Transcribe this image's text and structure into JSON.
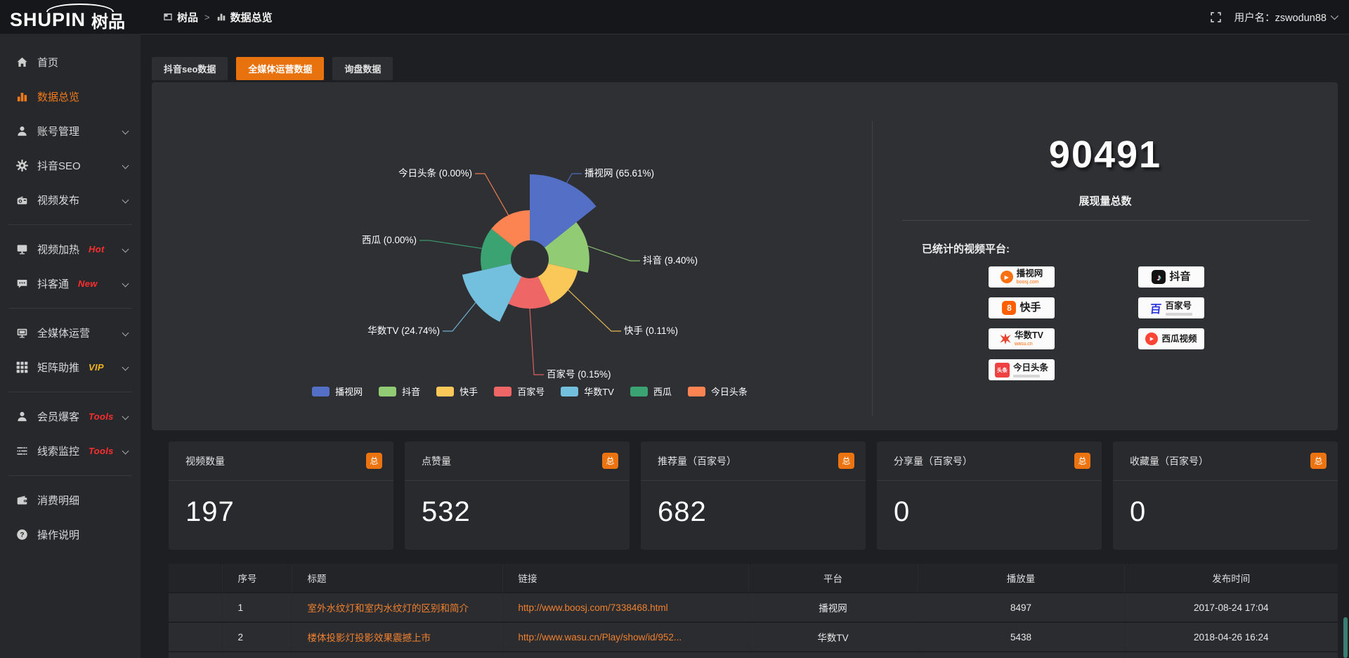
{
  "header": {
    "logo_en": "SHUPIN",
    "logo_cn": "树品",
    "breadcrumb": [
      {
        "label": "树品"
      },
      {
        "label": "数据总览"
      }
    ],
    "breadcrumb_sep": ">",
    "username": "用户名：zswodun88"
  },
  "sidebar": {
    "groups": [
      {
        "items": [
          {
            "label": "首页",
            "icon": "home",
            "active": false,
            "expandable": false
          },
          {
            "label": "数据总览",
            "icon": "chart-bars",
            "active": true,
            "expandable": false
          },
          {
            "label": "账号管理",
            "icon": "user",
            "active": false,
            "expandable": true
          },
          {
            "label": "抖音SEO",
            "icon": "gear",
            "active": false,
            "expandable": true
          },
          {
            "label": "视频发布",
            "icon": "video-upload",
            "active": false,
            "expandable": true
          }
        ]
      },
      {
        "items": [
          {
            "label": "视频加热",
            "icon": "screen",
            "badge": "Hot",
            "badge_color": "#ff2e2e",
            "expandable": true
          },
          {
            "label": "抖客通",
            "icon": "chat",
            "badge": "New",
            "badge_color": "#ff2e2e",
            "expandable": true
          }
        ]
      },
      {
        "items": [
          {
            "label": "全媒体运营",
            "icon": "monitor",
            "expandable": true
          },
          {
            "label": "矩阵助推",
            "icon": "grid",
            "badge": "VIP",
            "badge_color": "#f0b41e",
            "expandable": true
          }
        ]
      },
      {
        "items": [
          {
            "label": "会员爆客",
            "icon": "user-star",
            "badge": "Tools",
            "badge_color": "#ff2e2e",
            "expandable": true
          },
          {
            "label": "线索监控",
            "icon": "sliders",
            "badge": "Tools",
            "badge_color": "#ff2e2e",
            "expandable": true
          }
        ]
      },
      {
        "items": [
          {
            "label": "消费明细",
            "icon": "wallet",
            "expandable": false
          },
          {
            "label": "操作说明",
            "icon": "help-circle",
            "expandable": false
          }
        ]
      }
    ]
  },
  "tabs": [
    {
      "label": "抖音seo数据",
      "active": false
    },
    {
      "label": "全媒体运营数据",
      "active": true
    },
    {
      "label": "询盘数据",
      "active": false
    }
  ],
  "chart_data": {
    "type": "pie",
    "rose": true,
    "title": "",
    "legend_position": "bottom",
    "series_items": [
      {
        "name": "播视网",
        "pct": 65.61,
        "pct_label": "65.61%",
        "color": "#5470c6"
      },
      {
        "name": "抖音",
        "pct": 9.4,
        "pct_label": "9.40%",
        "color": "#91cc75"
      },
      {
        "name": "快手",
        "pct": 0.11,
        "pct_label": "0.11%",
        "color": "#fac858"
      },
      {
        "name": "百家号",
        "pct": 0.15,
        "pct_label": "0.15%",
        "color": "#ee6666"
      },
      {
        "name": "华数TV",
        "pct": 24.74,
        "pct_label": "24.74%",
        "color": "#73c0de"
      },
      {
        "name": "西瓜",
        "pct": 0.0,
        "pct_label": "0.00%",
        "color": "#3ba272"
      },
      {
        "name": "今日头条",
        "pct": 0.0,
        "pct_label": "0.00%",
        "color": "#fc8452"
      }
    ],
    "legend": [
      "播视网",
      "抖音",
      "快手",
      "百家号",
      "华数TV",
      "西瓜",
      "今日头条"
    ]
  },
  "summary": {
    "total_value": "90491",
    "total_label": "展现量总数",
    "platforms_title": "已统计的视频平台:",
    "badge_col1": [
      {
        "name": "播视网",
        "sub": "boosj.com",
        "icon": "boosj"
      },
      {
        "name": "快手",
        "icon": "kuaishou"
      },
      {
        "name": "华数TV",
        "sub": "wasu.cn",
        "icon": "wasu"
      },
      {
        "name": "今日头条",
        "icon": "toutiao",
        "tagline": true
      }
    ],
    "badge_col2": [
      {
        "name": "抖音",
        "icon": "douyin"
      },
      {
        "name": "百家号",
        "icon": "baijiahao",
        "tagline": true
      },
      {
        "name": "西瓜视频",
        "icon": "xigua"
      }
    ]
  },
  "stat_cards": [
    {
      "label": "视频数量",
      "badge": "总",
      "value": "197"
    },
    {
      "label": "点赞量",
      "badge": "总",
      "value": "532"
    },
    {
      "label": "推荐量（百家号）",
      "badge": "总",
      "value": "682"
    },
    {
      "label": "分享量（百家号）",
      "badge": "总",
      "value": "0"
    },
    {
      "label": "收藏量（百家号）",
      "badge": "总",
      "value": "0"
    }
  ],
  "table": {
    "headers": [
      "序号",
      "标题",
      "链接",
      "平台",
      "播放量",
      "发布时间"
    ],
    "rows": [
      {
        "index": "1",
        "title": "室外水纹灯和室内水纹灯的区别和简介",
        "link": "http://www.boosj.com/7338468.html",
        "platform": "播视网",
        "plays": "8497",
        "time": "2017-08-24 17:04"
      },
      {
        "index": "2",
        "title": "楼体投影灯投影效果震撼上市",
        "link": "http://www.wasu.cn/Play/show/id/952...",
        "platform": "华数TV",
        "plays": "5438",
        "time": "2018-04-26 16:24"
      }
    ]
  }
}
